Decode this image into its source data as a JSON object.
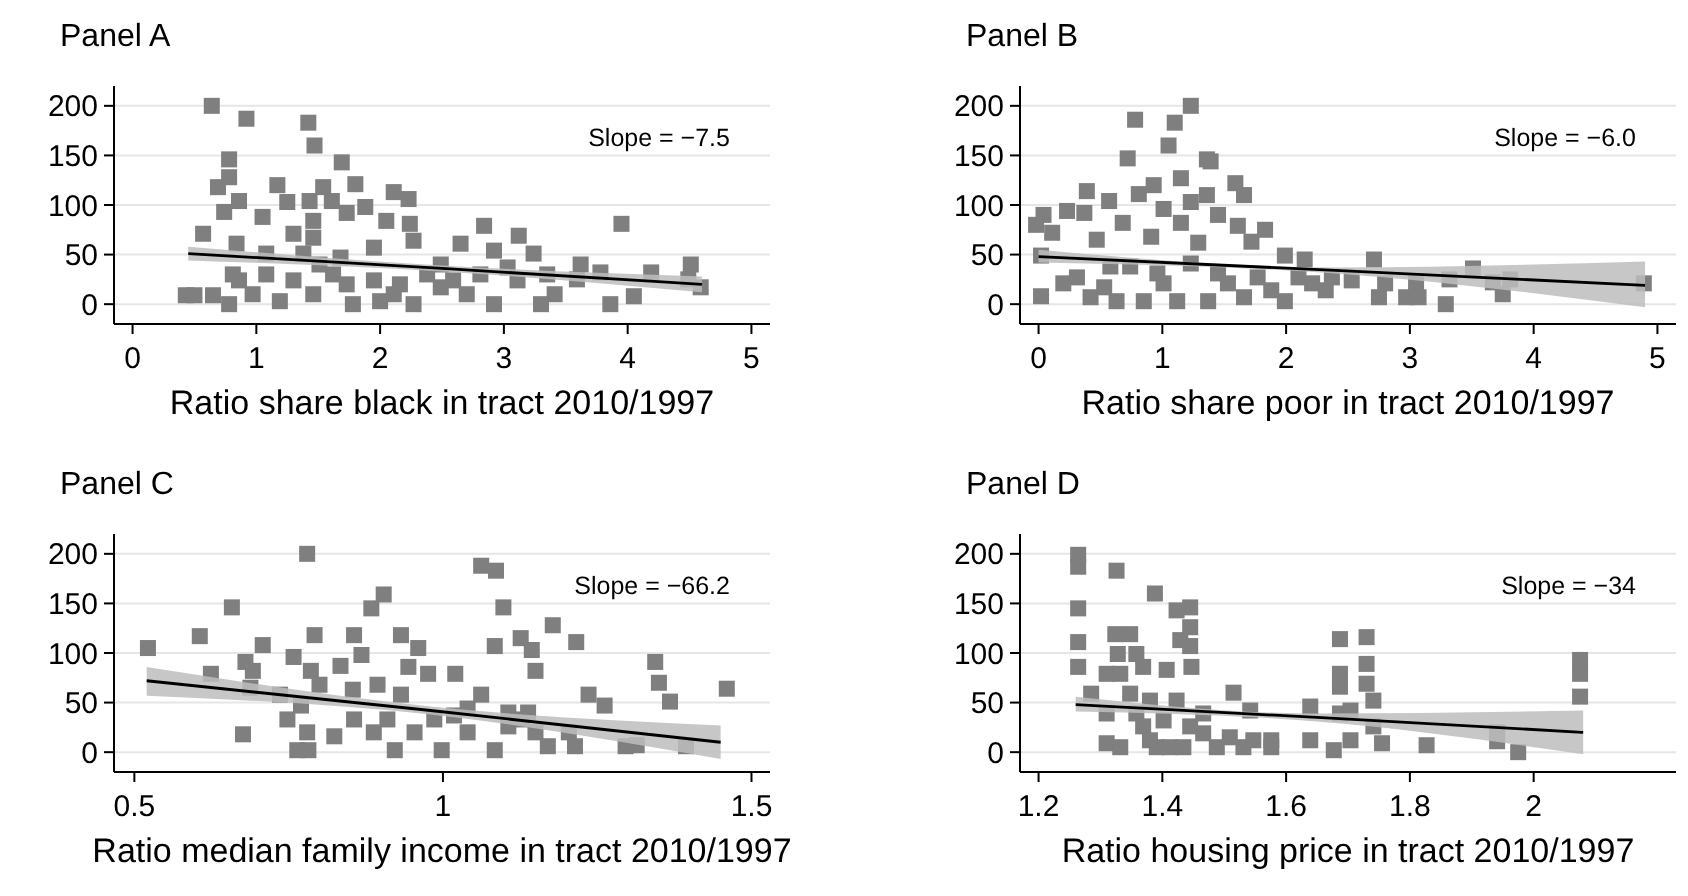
{
  "chart_data": [
    {
      "type": "scatter",
      "title": "Panel A",
      "xlabel": "Ratio share black in tract 2010/1997",
      "xlim": [
        -0.15,
        5.15
      ],
      "xticks": [
        0,
        1,
        2,
        3,
        4,
        5
      ],
      "ylim": [
        -20,
        220
      ],
      "yticks": [
        0,
        50,
        100,
        150,
        200
      ],
      "grid": "y",
      "annotations": [
        "Slope = −7.5"
      ],
      "series": [
        {
          "marker": "square",
          "color": "#7f7f7f",
          "x": [
            0.64,
            0.92,
            1.42,
            1.47,
            0.78,
            1.69,
            1.8,
            1.17,
            0.69,
            0.78,
            1.54,
            2.11,
            2.23,
            1.25,
            1.43,
            1.61,
            0.74,
            0.86,
            1.05,
            1.88,
            2.05,
            1.73,
            2.24,
            1.46,
            2.84,
            0.57,
            3.12,
            1.3,
            2.65,
            2.27,
            3.95,
            0.84,
            3.24,
            2.92,
            1.08,
            1.95,
            1.68,
            3.62,
            4.51,
            3.78,
            4.19,
            3.35,
            2.49,
            3.03,
            0.43,
            0.5,
            0.65,
            0.78,
            0.97,
            1.19,
            1.46,
            1.78,
            2.0,
            2.27,
            2.49,
            2.7,
            2.92,
            3.3,
            3.41,
            3.86,
            4.05,
            4.59,
            3.59,
            4.49,
            1.3,
            1.62,
            1.95,
            2.16,
            0.86,
            1.08,
            2.59,
            2.81,
            2.38,
            3.11,
            1.51,
            1.73,
            2.11,
            1.38,
            1.46,
            0.81
          ],
          "values": [
            200,
            187,
            183,
            160,
            146,
            143,
            121,
            120,
            118,
            128,
            118,
            113,
            106,
            103,
            104,
            104,
            93,
            104,
            88,
            98,
            84,
            92,
            81,
            84,
            79,
            71,
            69,
            71,
            61,
            64,
            81,
            61,
            51,
            54,
            51,
            57,
            47,
            40,
            40,
            32,
            32,
            30,
            40,
            37,
            9,
            9,
            9,
            0,
            10,
            3,
            10,
            0,
            3,
            0,
            17,
            10,
            0,
            0,
            10,
            0,
            8,
            17,
            25,
            25,
            24,
            30,
            24,
            20,
            24,
            30,
            24,
            30,
            30,
            24,
            40,
            20,
            10,
            51,
            67,
            30
          ]
        },
        {
          "type": "line",
          "color": "#000000",
          "x": [
            0.45,
            2.5,
            4.6
          ],
          "values": [
            51,
            36,
            20
          ],
          "lower": [
            44,
            33,
            12
          ],
          "upper": [
            58,
            39,
            28
          ]
        }
      ]
    },
    {
      "type": "scatter",
      "title": "Panel B",
      "xlabel": "Ratio share poor in tract 2010/1997",
      "xlim": [
        -0.15,
        5.15
      ],
      "xticks": [
        0,
        1,
        2,
        3,
        4,
        5
      ],
      "ylim": [
        -20,
        220
      ],
      "yticks": [
        0,
        50,
        100,
        150,
        200
      ],
      "grid": "y",
      "annotations": [
        "Slope = −6.0"
      ],
      "series": [
        {
          "marker": "square",
          "color": "#7f7f7f",
          "x": [
            1.23,
            0.78,
            1.1,
            1.05,
            0.72,
            1.39,
            1.36,
            1.59,
            1.66,
            1.15,
            0.93,
            0.81,
            0.39,
            0.23,
            0.04,
            -0.02,
            0.11,
            0.37,
            0.57,
            0.68,
            0.91,
            1.23,
            1.45,
            1.61,
            1.83,
            1.72,
            0.47,
            1.01,
            1.36,
            1.99,
            2.15,
            2.71,
            3.51,
            0.02,
            0.02,
            0.2,
            0.42,
            0.63,
            0.85,
            1.12,
            1.37,
            1.66,
            1.99,
            2.21,
            2.37,
            2.53,
            2.75,
            2.8,
            2.97,
            3.05,
            3.07,
            3.29,
            3.32,
            3.67,
            3.75,
            3.81,
            4.89,
            0.74,
            0.96,
            1.23,
            1.45,
            1.77,
            2.1,
            0.31,
            0.58,
            1.01,
            1.29,
            1.15,
            1.53,
            1.88,
            0.53,
            2.32
          ],
          "values": [
            200,
            186,
            183,
            160,
            147,
            144,
            146,
            122,
            110,
            127,
            120,
            111,
            114,
            94,
            90,
            80,
            72,
            92,
            104,
            82,
            68,
            103,
            90,
            79,
            75,
            63,
            65,
            96,
            110,
            49,
            45,
            45,
            36,
            8,
            49,
            21,
            7,
            3,
            3,
            3,
            3,
            7,
            3,
            21,
            27,
            24,
            7,
            21,
            7,
            21,
            7,
            0,
            25,
            22,
            10,
            25,
            21,
            38,
            31,
            41,
            31,
            27,
            27,
            27,
            38,
            21,
            62,
            82,
            21,
            14,
            17,
            14
          ]
        },
        {
          "type": "line",
          "color": "#000000",
          "x": [
            0,
            2.4,
            4.9
          ],
          "values": [
            48,
            34,
            19
          ],
          "lower": [
            42,
            31,
            -3
          ],
          "upper": [
            55,
            37,
            43
          ]
        }
      ]
    },
    {
      "type": "scatter",
      "title": "Panel C",
      "xlabel": "Ratio median family income in tract 2010/1997",
      "xlim": [
        0.467,
        1.53
      ],
      "xticks": [
        0.5,
        1,
        1.5
      ],
      "ylim": [
        -20,
        220
      ],
      "yticks": [
        0,
        50,
        100,
        150,
        200
      ],
      "grid": "y",
      "annotations": [
        "Slope = −66.2"
      ],
      "series": [
        {
          "marker": "square",
          "color": "#7f7f7f",
          "x": [
            0.522,
            0.606,
            0.624,
            0.658,
            0.68,
            0.692,
            0.708,
            0.676,
            0.688,
            0.736,
            0.748,
            0.758,
            0.78,
            0.792,
            0.786,
            0.77,
            0.78,
            0.764,
            0.782,
            0.8,
            0.834,
            0.856,
            0.868,
            0.884,
            0.904,
            0.854,
            0.894,
            0.932,
            0.96,
            0.944,
            0.932,
            0.976,
            1.02,
            0.824,
            0.856,
            0.888,
            0.922,
            0.954,
            0.998,
            1.04,
            1.084,
            1.062,
            1.062,
            1.086,
            1.098,
            1.084,
            1.128,
            1.15,
            1.106,
            1.126,
            1.144,
            1.15,
            1.138,
            1.178,
            1.216,
            1.236,
            1.262,
            1.17,
            1.214,
            1.296,
            1.314,
            1.344,
            1.35,
            1.368,
            1.394,
            1.46,
            0.986,
            1.04,
            1.106,
            1.204,
            0.91,
            1.018
          ],
          "values": [
            105,
            117,
            79,
            146,
            91,
            82,
            108,
            18,
            65,
            58,
            33,
            96,
            200,
            118,
            82,
            47,
            20,
            2,
            2,
            68,
            87,
            118,
            98,
            145,
            159,
            63,
            68,
            118,
            105,
            86,
            58,
            79,
            79,
            16,
            33,
            20,
            2,
            20,
            2,
            20,
            2,
            58,
            188,
            183,
            146,
            107,
            33,
            20,
            40,
            115,
            103,
            82,
            40,
            128,
            111,
            58,
            47,
            6,
            6,
            6,
            7,
            91,
            70,
            51,
            6,
            64,
            33,
            44,
            26,
            20,
            33,
            37
          ]
        },
        {
          "type": "line",
          "color": "#000000",
          "x": [
            0.52,
            0.98,
            1.45
          ],
          "values": [
            72,
            42,
            10
          ],
          "lower": [
            57,
            38,
            -7
          ],
          "upper": [
            86,
            46,
            27
          ]
        }
      ]
    },
    {
      "type": "scatter",
      "title": "Panel D",
      "xlabel": "Ratio housing price in tract 2010/1997",
      "xlim": [
        1.17,
        2.23
      ],
      "xticks": [
        1.2,
        1.4,
        1.6,
        1.8,
        2
      ],
      "ylim": [
        -20,
        220
      ],
      "yticks": [
        0,
        50,
        100,
        150,
        200
      ],
      "grid": "y",
      "annotations": [
        "Slope = −34"
      ],
      "series": [
        {
          "marker": "square",
          "color": "#7f7f7f",
          "x": [
            1.264,
            1.264,
            1.264,
            1.264,
            1.264,
            1.326,
            1.388,
            1.423,
            1.445,
            1.445,
            1.445,
            1.429,
            1.324,
            1.348,
            1.31,
            1.285,
            1.328,
            1.358,
            1.369,
            1.332,
            1.407,
            1.447,
            1.31,
            1.31,
            1.332,
            1.358,
            1.38,
            1.391,
            1.412,
            1.434,
            1.445,
            1.466,
            1.488,
            1.509,
            1.515,
            1.531,
            1.542,
            1.547,
            1.576,
            1.576,
            1.639,
            1.639,
            1.677,
            1.687,
            1.687,
            1.687,
            1.687,
            1.704,
            1.704,
            1.73,
            1.73,
            1.73,
            1.741,
            1.741,
            1.755,
            1.827,
            1.941,
            1.941,
            1.975,
            2.075,
            2.075,
            2.075,
            1.369,
            1.402,
            1.423,
            1.466,
            1.348,
            1.38
          ],
          "values": [
            199,
            187,
            145,
            111,
            86,
            183,
            160,
            143,
            146,
            126,
            107,
            113,
            119,
            119,
            79,
            59,
            99,
            99,
            86,
            79,
            83,
            86,
            39,
            9,
            5,
            39,
            52,
            5,
            5,
            5,
            26,
            19,
            5,
            15,
            60,
            5,
            42,
            12,
            12,
            5,
            46,
            12,
            2,
            114,
            79,
            66,
            39,
            42,
            12,
            116,
            89,
            69,
            52,
            26,
            9,
            7,
            20,
            11,
            0,
            93,
            79,
            56,
            26,
            32,
            52,
            39,
            59,
            12
          ]
        },
        {
          "type": "line",
          "color": "#000000",
          "x": [
            1.26,
            1.65,
            2.08
          ],
          "values": [
            48,
            35,
            20
          ],
          "lower": [
            41,
            31,
            -2
          ],
          "upper": [
            56,
            39,
            42
          ]
        }
      ]
    }
  ]
}
